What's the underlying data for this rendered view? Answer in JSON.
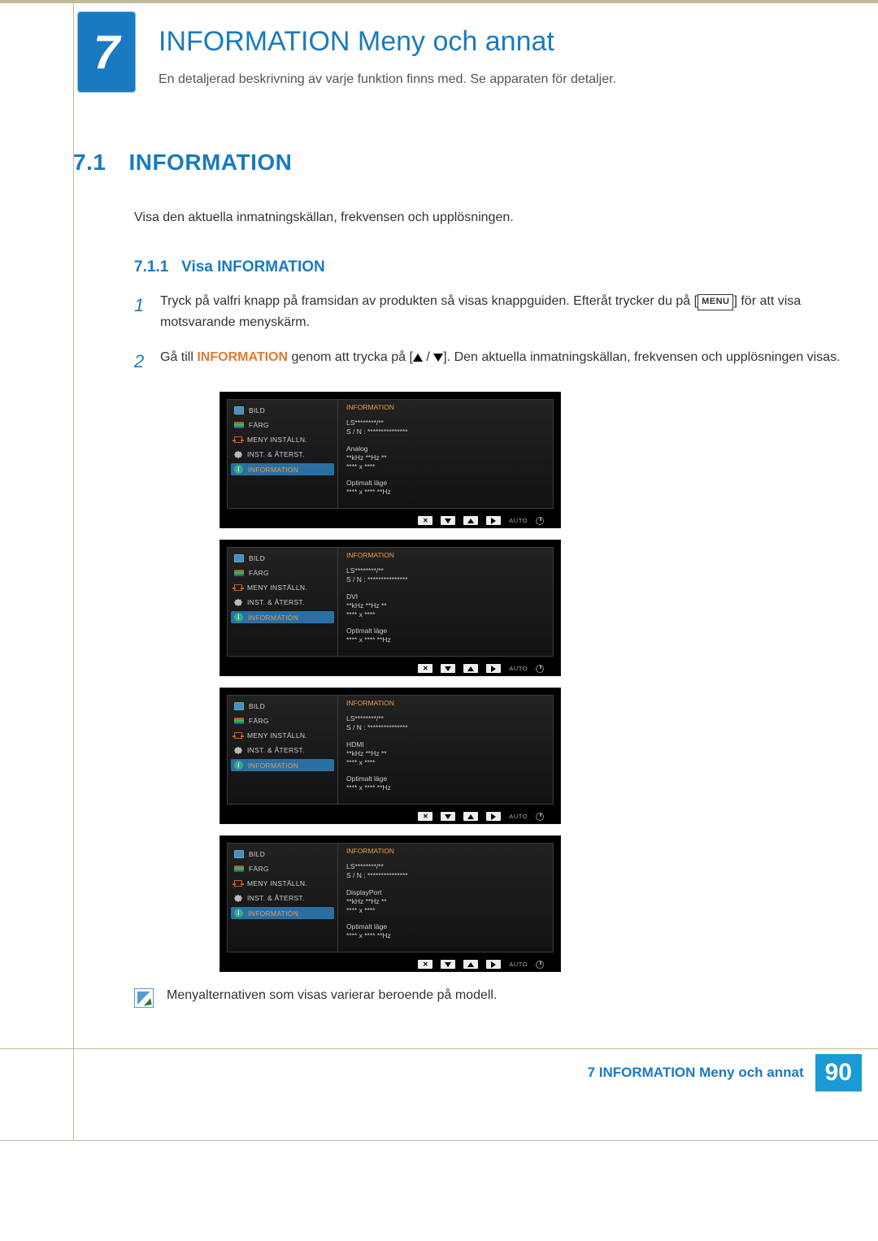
{
  "chapter": {
    "number": "7",
    "title": "INFORMATION Meny och annat",
    "subtitle": "En detaljerad beskrivning av varje funktion finns med. Se apparaten för detaljer."
  },
  "section": {
    "number": "7.1",
    "title": "INFORMATION",
    "intro": "Visa den aktuella inmatningskällan, frekvensen och upplösningen."
  },
  "subsection": {
    "number": "7.1.1",
    "title": "Visa INFORMATION"
  },
  "steps": {
    "s1": {
      "num": "1",
      "text_a": "Tryck på valfri knapp på framsidan av produkten så visas knappguiden. Efteråt trycker du på [",
      "menu_label": "MENU",
      "text_b": "] för att visa motsvarande menyskärm."
    },
    "s2": {
      "num": "2",
      "text_a": "Gå till ",
      "orange": "INFORMATION",
      "text_b": " genom att trycka på [",
      "text_c": "]. Den aktuella inmatningskällan, frekvensen och upplösningen visas."
    }
  },
  "osd_common": {
    "menu_items": {
      "bild": "BILD",
      "farg": "FÄRG",
      "meny": "MENY INSTÄLLN.",
      "inst": "INST. & ÅTERST.",
      "info": "INFORMATION"
    },
    "panel_header": "INFORMATION",
    "model": "LS********/**",
    "serial": "S / N : ***************",
    "freq": "**kHz **Hz **",
    "res": "**** x ****",
    "opt_label": "Optimalt läge",
    "opt_val": "**** x **** **Hz",
    "auto": "AUTO",
    "info_i": "i"
  },
  "osd_list": [
    {
      "source": "Analog"
    },
    {
      "source": "DVI"
    },
    {
      "source": "HDMI"
    },
    {
      "source": "DisplayPort"
    }
  ],
  "note": "Menyalternativen som visas varierar beroende på modell.",
  "footer": {
    "text": "7 INFORMATION Meny och annat",
    "page": "90"
  },
  "colors": {
    "brand_blue": "#1a7abf",
    "khaki_border": "#c0b89a",
    "orange": "#e07a2e"
  }
}
